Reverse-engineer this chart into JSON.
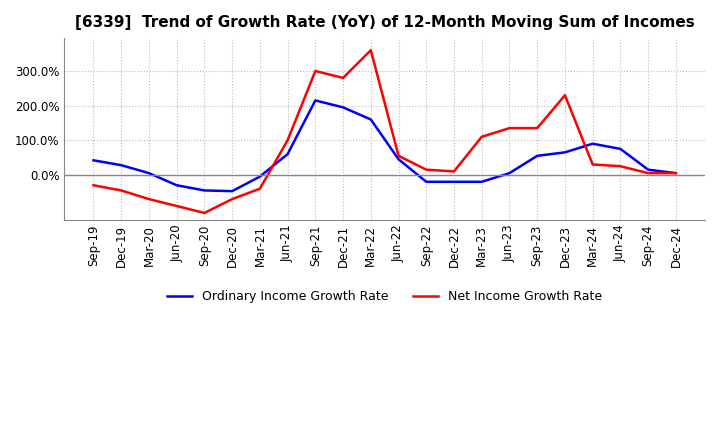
{
  "title": "[6339]  Trend of Growth Rate (YoY) of 12-Month Moving Sum of Incomes",
  "title_fontsize": 11,
  "legend_labels": [
    "Ordinary Income Growth Rate",
    "Net Income Growth Rate"
  ],
  "legend_colors": [
    "#0000ff",
    "#ff0000"
  ],
  "x_labels": [
    "Sep-19",
    "Dec-19",
    "Mar-20",
    "Jun-20",
    "Sep-20",
    "Dec-20",
    "Mar-21",
    "Jun-21",
    "Sep-21",
    "Dec-21",
    "Mar-22",
    "Jun-22",
    "Sep-22",
    "Dec-22",
    "Mar-23",
    "Jun-23",
    "Sep-23",
    "Dec-23",
    "Mar-24",
    "Jun-24",
    "Sep-24",
    "Dec-24"
  ],
  "ordinary_income": [
    42,
    28,
    5,
    -30,
    -45,
    -47,
    -5,
    60,
    215,
    195,
    160,
    45,
    -20,
    -20,
    -20,
    5,
    55,
    65,
    90,
    75,
    15,
    5
  ],
  "net_income": [
    -30,
    -45,
    -70,
    -90,
    -110,
    -70,
    -40,
    100,
    300,
    280,
    360,
    55,
    15,
    10,
    110,
    135,
    135,
    230,
    30,
    25,
    5,
    5
  ],
  "ylim": [
    -130,
    395
  ],
  "ytick_values": [
    0,
    100,
    200,
    300
  ],
  "grid_color": "#bbbbbb",
  "background_color": "#ffffff",
  "line_width": 1.8,
  "zero_line_color": "#888888"
}
